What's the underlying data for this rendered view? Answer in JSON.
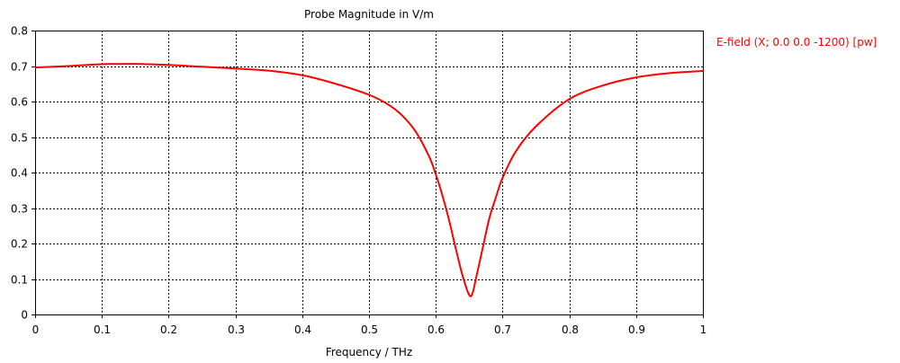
{
  "chart_data": {
    "type": "line",
    "title": "Probe Magnitude in V/m",
    "xlabel": "Frequency / THz",
    "ylabel": "",
    "xlim": [
      0,
      1
    ],
    "ylim": [
      0,
      0.8
    ],
    "x_ticks": [
      "0",
      "0.1",
      "0.2",
      "0.3",
      "0.4",
      "0.5",
      "0.6",
      "0.7",
      "0.8",
      "0.9",
      "1"
    ],
    "y_ticks": [
      "0",
      "0.1",
      "0.2",
      "0.3",
      "0.4",
      "0.5",
      "0.6",
      "0.7",
      "0.8"
    ],
    "grid": true,
    "legend_position": "right",
    "series": [
      {
        "name": "E-field (X; 0.0 0.0 -1200) [pw]",
        "color": "#ff0000",
        "points": [
          [
            0.0,
            0.696
          ],
          [
            0.05,
            0.7
          ],
          [
            0.1,
            0.705
          ],
          [
            0.15,
            0.706
          ],
          [
            0.2,
            0.703
          ],
          [
            0.25,
            0.698
          ],
          [
            0.3,
            0.693
          ],
          [
            0.35,
            0.687
          ],
          [
            0.4,
            0.674
          ],
          [
            0.45,
            0.65
          ],
          [
            0.5,
            0.619
          ],
          [
            0.53,
            0.59
          ],
          [
            0.55,
            0.56
          ],
          [
            0.57,
            0.515
          ],
          [
            0.59,
            0.445
          ],
          [
            0.6,
            0.395
          ],
          [
            0.61,
            0.335
          ],
          [
            0.62,
            0.265
          ],
          [
            0.63,
            0.185
          ],
          [
            0.64,
            0.11
          ],
          [
            0.65,
            0.055
          ],
          [
            0.655,
            0.06
          ],
          [
            0.66,
            0.1
          ],
          [
            0.67,
            0.185
          ],
          [
            0.68,
            0.27
          ],
          [
            0.69,
            0.33
          ],
          [
            0.7,
            0.385
          ],
          [
            0.72,
            0.46
          ],
          [
            0.75,
            0.53
          ],
          [
            0.8,
            0.607
          ],
          [
            0.85,
            0.645
          ],
          [
            0.9,
            0.668
          ],
          [
            0.95,
            0.68
          ],
          [
            1.0,
            0.686
          ]
        ]
      }
    ]
  }
}
